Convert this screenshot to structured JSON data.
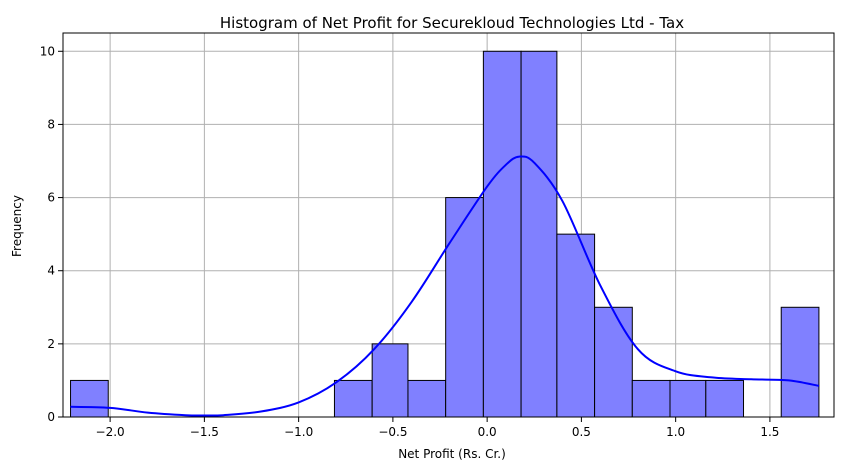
{
  "chart_data": {
    "type": "bar",
    "title": "Histogram of Net Profit for Securekloud Technologies Ltd - Tax",
    "xlabel": "Net Profit (Rs. Cr.)",
    "ylabel": "Frequency",
    "xlim": [
      -2.25,
      1.84
    ],
    "ylim": [
      0,
      10.5
    ],
    "xticks": [
      -2.0,
      -1.5,
      -1.0,
      -0.5,
      0.0,
      0.5,
      1.0,
      1.5
    ],
    "xtick_labels": [
      "−2.0",
      "−1.5",
      "−1.0",
      "−0.5",
      "0.0",
      "0.5",
      "1.0",
      "1.5"
    ],
    "yticks": [
      0,
      2,
      4,
      6,
      8,
      10
    ],
    "ytick_labels": [
      "0",
      "2",
      "4",
      "6",
      "8",
      "10"
    ],
    "grid": true,
    "bar_color": "#8080ff",
    "bar_edge_color": "#000000",
    "kde_color": "#0000ff",
    "bins": [
      {
        "x0": -2.21,
        "x1": -2.01,
        "count": 1
      },
      {
        "x0": -2.01,
        "x1": -1.81,
        "count": 0
      },
      {
        "x0": -1.81,
        "x1": -1.61,
        "count": 0
      },
      {
        "x0": -1.61,
        "x1": -1.41,
        "count": 0
      },
      {
        "x0": -1.41,
        "x1": -1.21,
        "count": 0
      },
      {
        "x0": -1.21,
        "x1": -1.01,
        "count": 0
      },
      {
        "x0": -1.01,
        "x1": -0.81,
        "count": 0
      },
      {
        "x0": -0.81,
        "x1": -0.61,
        "count": 1
      },
      {
        "x0": -0.61,
        "x1": -0.42,
        "count": 2
      },
      {
        "x0": -0.42,
        "x1": -0.22,
        "count": 1
      },
      {
        "x0": -0.22,
        "x1": -0.02,
        "count": 6
      },
      {
        "x0": -0.02,
        "x1": 0.18,
        "count": 10
      },
      {
        "x0": 0.18,
        "x1": 0.37,
        "count": 10
      },
      {
        "x0": 0.37,
        "x1": 0.57,
        "count": 5
      },
      {
        "x0": 0.57,
        "x1": 0.77,
        "count": 3
      },
      {
        "x0": 0.77,
        "x1": 0.97,
        "count": 1
      },
      {
        "x0": 0.97,
        "x1": 1.16,
        "count": 1
      },
      {
        "x0": 1.16,
        "x1": 1.36,
        "count": 1
      },
      {
        "x0": 1.36,
        "x1": 1.56,
        "count": 0
      },
      {
        "x0": 1.56,
        "x1": 1.76,
        "count": 3
      }
    ],
    "kde": {
      "x": [
        -2.21,
        -2.0,
        -1.8,
        -1.6,
        -1.5,
        -1.4,
        -1.2,
        -1.0,
        -0.8,
        -0.6,
        -0.4,
        -0.2,
        0.0,
        0.1,
        0.17,
        0.25,
        0.4,
        0.6,
        0.8,
        1.0,
        1.2,
        1.4,
        1.6,
        1.76
      ],
      "y": [
        0.28,
        0.25,
        0.12,
        0.05,
        0.04,
        0.05,
        0.15,
        0.4,
        0.95,
        1.85,
        3.15,
        4.75,
        6.3,
        6.9,
        7.12,
        6.95,
        5.9,
        3.6,
        1.85,
        1.25,
        1.08,
        1.03,
        1.0,
        0.85
      ]
    }
  }
}
